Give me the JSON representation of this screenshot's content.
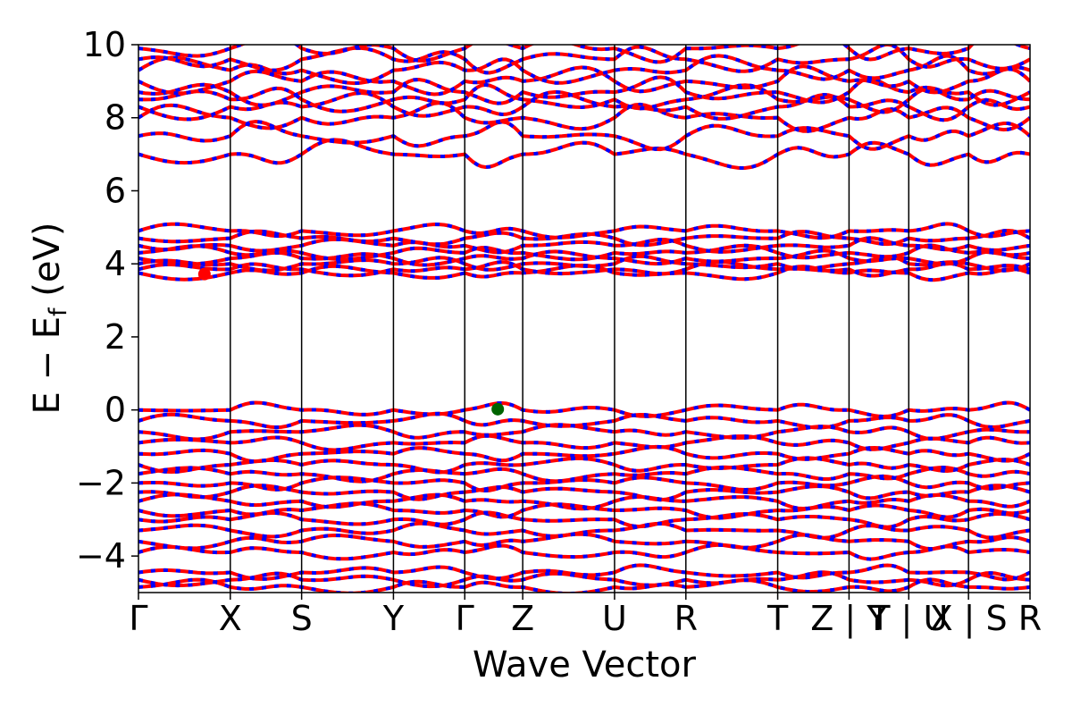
{
  "chart_data": {
    "type": "line",
    "title": "",
    "xlabel": "Wave Vector",
    "ylabel": "E − E",
    "ylabel_subscript": "f",
    "ylabel_unit": "(eV)",
    "ylim": [
      -5,
      10
    ],
    "yticks": [
      -4,
      -2,
      0,
      2,
      4,
      6,
      8,
      10
    ],
    "ytick_labels": [
      "−4",
      "−2",
      "0",
      "2",
      "4",
      "6",
      "8",
      "10"
    ],
    "xlim": [
      0,
      100
    ],
    "kpoints": [
      {
        "x": 0,
        "label": "Γ"
      },
      {
        "x": 10.3,
        "label": "X"
      },
      {
        "x": 18.3,
        "label": "S"
      },
      {
        "x": 28.6,
        "label": "Y"
      },
      {
        "x": 36.6,
        "label": "Γ"
      },
      {
        "x": 43.1,
        "label": "Z"
      },
      {
        "x": 53.4,
        "label": "U"
      },
      {
        "x": 61.4,
        "label": "R"
      },
      {
        "x": 71.7,
        "label": "T"
      },
      {
        "x": 79.7,
        "label": "Z | Y"
      },
      {
        "x": 86.4,
        "label": "T | U"
      },
      {
        "x": 93.1,
        "label": "X | S"
      },
      {
        "x": 100,
        "label": "R"
      }
    ],
    "series_colors": {
      "spin_up": "#ff0000",
      "spin_down": "#0000ff"
    },
    "markers": [
      {
        "name": "CBM",
        "x": 7.4,
        "y": 3.72,
        "color": "#ff0000"
      },
      {
        "name": "VBM",
        "x": 40.3,
        "y": 0.02,
        "color": "#006400"
      }
    ],
    "bands": {
      "top": [
        7.0,
        7.5,
        8.0,
        8.3,
        8.5,
        8.7,
        9.0,
        9.3,
        9.6,
        9.9
      ],
      "cond": [
        3.75,
        3.85,
        4.0,
        4.15,
        4.3,
        4.5,
        4.7,
        4.9
      ],
      "val": [
        0.0,
        -0.3,
        -0.6,
        -0.9,
        -1.2,
        -1.5,
        -1.75,
        -2.0,
        -2.25,
        -2.5,
        -2.75,
        -3.0,
        -3.3,
        -3.6,
        -3.9,
        -4.45,
        -4.65,
        -4.85
      ]
    },
    "grid": false,
    "legend": "none"
  }
}
